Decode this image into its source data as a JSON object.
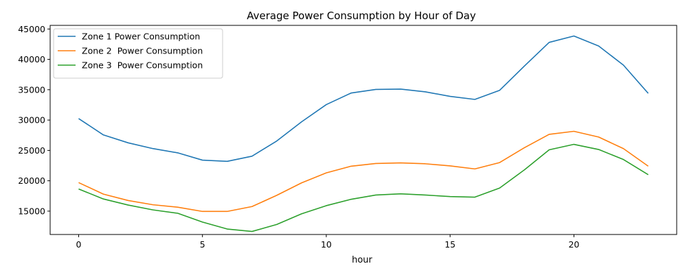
{
  "chart_data": {
    "type": "line",
    "title": "Average Power Consumption by Hour of Day",
    "xlabel": "hour",
    "ylabel": "",
    "xlim": [
      -1.15,
      24.15
    ],
    "ylim": [
      11150,
      45600
    ],
    "xticks": [
      0,
      5,
      10,
      15,
      20
    ],
    "yticks": [
      15000,
      20000,
      25000,
      30000,
      35000,
      40000,
      45000
    ],
    "grid": false,
    "legend_position": "top-left",
    "x": [
      0,
      1,
      2,
      3,
      4,
      5,
      6,
      7,
      8,
      9,
      10,
      11,
      12,
      13,
      14,
      15,
      16,
      17,
      18,
      19,
      20,
      21,
      22,
      23
    ],
    "series": [
      {
        "name": "Zone 1 Power Consumption",
        "color": "#1f77b4",
        "values": [
          30250,
          27550,
          26250,
          25300,
          24600,
          23400,
          23200,
          24050,
          26550,
          29700,
          32550,
          34450,
          35050,
          35100,
          34650,
          33900,
          33400,
          34900,
          38900,
          42800,
          43850,
          42200,
          39050,
          34400
        ]
      },
      {
        "name": "Zone 2  Power Consumption",
        "color": "#ff7f0e",
        "values": [
          19700,
          17800,
          16750,
          16050,
          15650,
          14950,
          14950,
          15750,
          17600,
          19650,
          21300,
          22400,
          22850,
          22950,
          22800,
          22450,
          21950,
          23000,
          25450,
          27650,
          28150,
          27200,
          25300,
          22400
        ]
      },
      {
        "name": "Zone 3  Power Consumption",
        "color": "#2ca02c",
        "values": [
          18650,
          17000,
          16000,
          15200,
          14650,
          13200,
          12050,
          11650,
          12800,
          14550,
          15900,
          16950,
          17650,
          17850,
          17650,
          17400,
          17300,
          18800,
          21800,
          25100,
          26000,
          25150,
          23500,
          21000
        ]
      }
    ]
  }
}
